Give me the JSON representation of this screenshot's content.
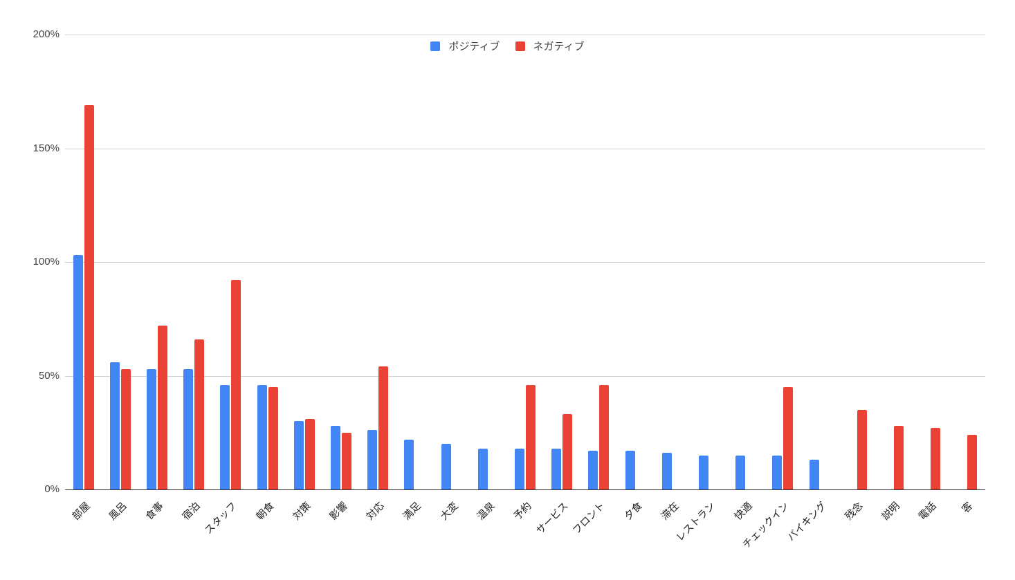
{
  "chart_data": {
    "type": "bar",
    "title": "",
    "xlabel": "",
    "ylabel": "",
    "ylim": [
      0,
      200
    ],
    "yticks": [
      "0%",
      "50%",
      "100%",
      "150%",
      "200%"
    ],
    "grid": true,
    "legend_position": "top",
    "categories": [
      "部屋",
      "風呂",
      "食事",
      "宿泊",
      "スタッフ",
      "朝食",
      "対策",
      "影響",
      "対応",
      "満足",
      "大変",
      "温泉",
      "予約",
      "サービス",
      "フロント",
      "夕食",
      "滞在",
      "レストラン",
      "快適",
      "チェックイン",
      "バイキング",
      "残念",
      "説明",
      "電話",
      "客"
    ],
    "series": [
      {
        "name": "ポジティブ",
        "color": "#4285f4",
        "values": [
          103,
          56,
          53,
          53,
          46,
          46,
          30,
          28,
          26,
          22,
          20,
          18,
          18,
          18,
          17,
          17,
          16,
          15,
          15,
          15,
          13,
          0,
          0,
          0,
          0
        ]
      },
      {
        "name": "ネガティブ",
        "color": "#ea4335",
        "values": [
          169,
          53,
          72,
          66,
          92,
          45,
          31,
          25,
          54,
          0,
          0,
          0,
          46,
          33,
          46,
          0,
          0,
          0,
          0,
          45,
          0,
          35,
          28,
          27,
          24
        ]
      }
    ]
  },
  "legend": {
    "positive_label": "ポジティブ",
    "negative_label": "ネガティブ",
    "positive_color": "#4285f4",
    "negative_color": "#ea4335"
  }
}
